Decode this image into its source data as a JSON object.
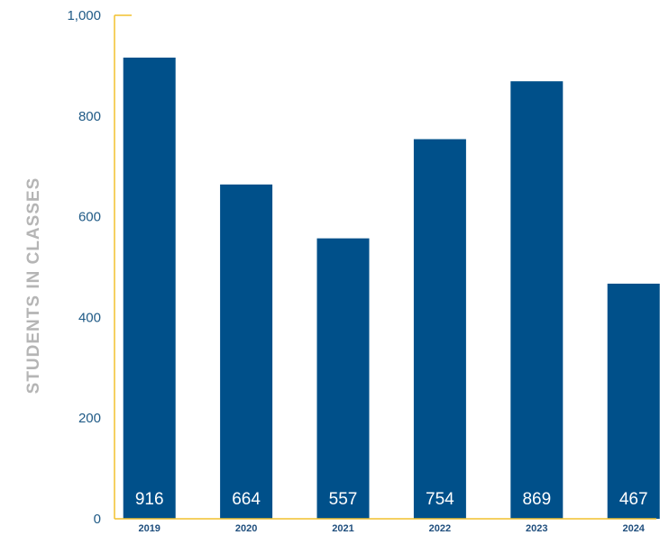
{
  "chart_data": {
    "type": "bar",
    "categories": [
      "2019",
      "2020",
      "2021",
      "2022",
      "2023",
      "2024"
    ],
    "values": [
      916,
      664,
      557,
      754,
      869,
      467
    ],
    "series": [
      {
        "values": [
          916,
          664,
          557,
          754,
          869,
          467
        ]
      }
    ],
    "xlabel": "",
    "ylabel": "STUDENTS IN CLASSES",
    "ylim": [
      0,
      1000
    ],
    "yticks": [
      "0",
      "200",
      "400",
      "600",
      "800",
      "1,000"
    ],
    "grid": false,
    "legend": "none",
    "colors": {
      "bar": "#00508a",
      "axis": "#f2c12e",
      "tick_text": "#1f5a86",
      "ylabel": "#b5b5b5",
      "data_label": "#ffffff"
    }
  }
}
